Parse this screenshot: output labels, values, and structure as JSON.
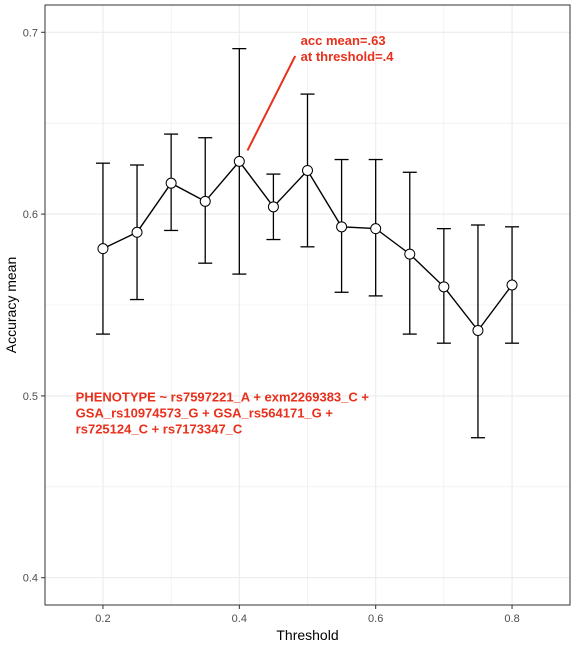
{
  "chart_data": {
    "type": "line",
    "xlabel": "Threshold",
    "ylabel": "Accuracy mean",
    "xlim": [
      0.115,
      0.885
    ],
    "ylim": [
      0.385,
      0.715
    ],
    "x_ticks": [
      0.2,
      0.4,
      0.6,
      0.8
    ],
    "x_tick_labels": [
      "0.2",
      "0.4",
      "0.6",
      "0.8"
    ],
    "y_ticks": [
      0.4,
      0.5,
      0.6,
      0.7
    ],
    "y_tick_labels": [
      "0.4",
      "0.5",
      "0.6",
      "0.7"
    ],
    "grid": true,
    "points": [
      {
        "x": 0.2,
        "y": 0.581,
        "lower": 0.534,
        "upper": 0.628
      },
      {
        "x": 0.25,
        "y": 0.59,
        "lower": 0.553,
        "upper": 0.627
      },
      {
        "x": 0.3,
        "y": 0.617,
        "lower": 0.591,
        "upper": 0.644
      },
      {
        "x": 0.35,
        "y": 0.607,
        "lower": 0.573,
        "upper": 0.642
      },
      {
        "x": 0.4,
        "y": 0.629,
        "lower": 0.567,
        "upper": 0.691
      },
      {
        "x": 0.45,
        "y": 0.604,
        "lower": 0.586,
        "upper": 0.622
      },
      {
        "x": 0.5,
        "y": 0.624,
        "lower": 0.582,
        "upper": 0.666
      },
      {
        "x": 0.55,
        "y": 0.593,
        "lower": 0.557,
        "upper": 0.63
      },
      {
        "x": 0.6,
        "y": 0.592,
        "lower": 0.555,
        "upper": 0.63
      },
      {
        "x": 0.65,
        "y": 0.578,
        "lower": 0.534,
        "upper": 0.623
      },
      {
        "x": 0.7,
        "y": 0.56,
        "lower": 0.529,
        "upper": 0.592
      },
      {
        "x": 0.75,
        "y": 0.536,
        "lower": 0.477,
        "upper": 0.594
      },
      {
        "x": 0.8,
        "y": 0.561,
        "lower": 0.529,
        "upper": 0.593
      }
    ],
    "annotations": [
      {
        "id": "acc",
        "lines": [
          "acc mean=.63",
          "at threshold=.4"
        ],
        "x": 0.49,
        "y": 0.693,
        "color": "#e8301c",
        "arrow": {
          "from": [
            0.482,
            0.687
          ],
          "to": [
            0.412,
            0.635
          ]
        }
      },
      {
        "id": "formula",
        "lines": [
          "PHENOTYPE ~ rs7597221_A + exm2269383_C +",
          "GSA_rs10974573_G + GSA_rs564171_G +",
          "rs725124_C + rs7173347_C"
        ],
        "x": 0.16,
        "y": 0.497,
        "color": "#e8301c"
      }
    ],
    "colors": {
      "line": "#000000",
      "point_fill": "#ffffff",
      "grid": "#ebebeb",
      "panel_border": "#333333",
      "annotation": "#e8301c"
    }
  }
}
